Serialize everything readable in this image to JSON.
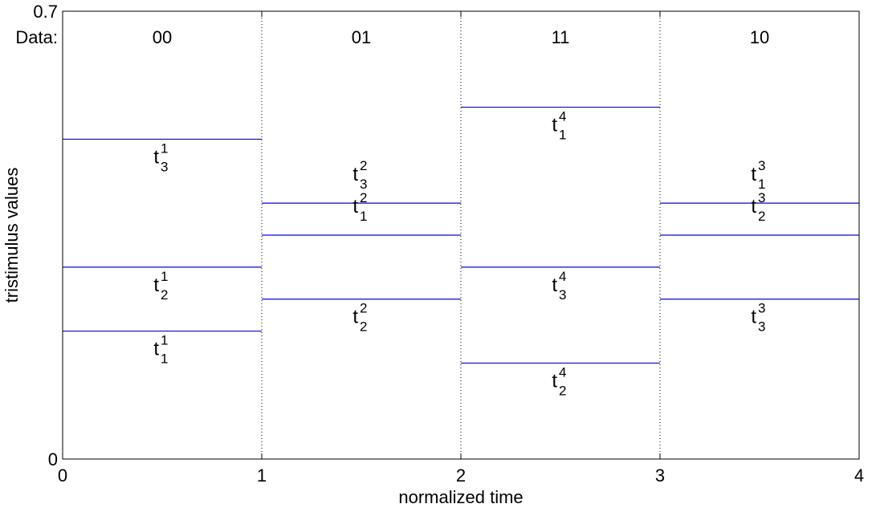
{
  "chart_data": {
    "type": "line",
    "xlabel": "normalized time",
    "ylabel": "tristimulus values",
    "xlim": [
      0,
      4
    ],
    "ylim": [
      0,
      0.7
    ],
    "x_ticks": [
      "0",
      "1",
      "2",
      "3",
      "4"
    ],
    "y_ticks": [
      "0",
      "0.7"
    ],
    "data_row_label": "Data:",
    "segments": [
      {
        "x": [
          0,
          1
        ],
        "data": "00",
        "levels": [
          {
            "value": 0.5,
            "base": "t",
            "sup": "1",
            "sub": "3"
          },
          {
            "value": 0.3,
            "base": "t",
            "sup": "1",
            "sub": "2"
          },
          {
            "value": 0.2,
            "base": "t",
            "sup": "1",
            "sub": "1"
          }
        ]
      },
      {
        "x": [
          1,
          2
        ],
        "data": "01",
        "levels": [
          {
            "value": 0.4,
            "base": "t",
            "sup": "2",
            "sub": "3"
          },
          {
            "value": 0.35,
            "base": "t",
            "sup": "2",
            "sub": "1"
          },
          {
            "value": 0.25,
            "base": "t",
            "sup": "2",
            "sub": "2"
          }
        ]
      },
      {
        "x": [
          2,
          3
        ],
        "data": "11",
        "levels": [
          {
            "value": 0.55,
            "base": "t",
            "sup": "4",
            "sub": "1"
          },
          {
            "value": 0.3,
            "base": "t",
            "sup": "4",
            "sub": "3"
          },
          {
            "value": 0.15,
            "base": "t",
            "sup": "4",
            "sub": "2"
          }
        ]
      },
      {
        "x": [
          3,
          4
        ],
        "data": "10",
        "levels": [
          {
            "value": 0.4,
            "base": "t",
            "sup": "3",
            "sub": "1"
          },
          {
            "value": 0.35,
            "base": "t",
            "sup": "3",
            "sub": "2"
          },
          {
            "value": 0.25,
            "base": "t",
            "sup": "3",
            "sub": "3"
          }
        ]
      }
    ],
    "grid": false,
    "line_color": "#0000ff"
  }
}
